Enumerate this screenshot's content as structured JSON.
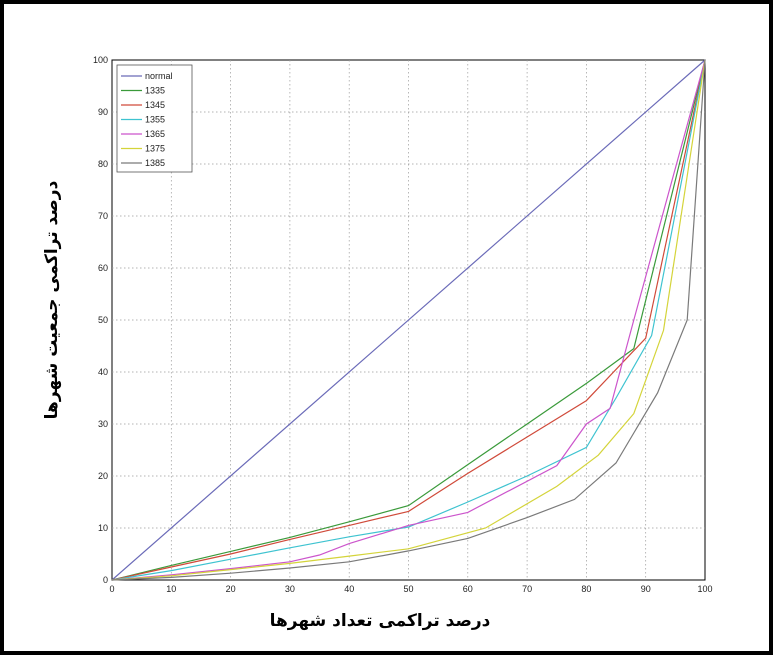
{
  "chart_data": {
    "type": "line",
    "title": "",
    "xlabel": "درصد تراکمی تعداد شهرها",
    "ylabel": "درصد تراکمی جمعیت شهرها",
    "xlim": [
      0,
      100
    ],
    "ylim": [
      0,
      100
    ],
    "xticks": [
      0,
      10,
      20,
      30,
      40,
      50,
      60,
      70,
      80,
      90,
      100
    ],
    "yticks": [
      0,
      10,
      20,
      30,
      40,
      50,
      60,
      70,
      80,
      90,
      100
    ],
    "grid": true,
    "legend_position": "top-left",
    "series": [
      {
        "name": "normal",
        "color": "#6a6ab8",
        "x": [
          0,
          100
        ],
        "y": [
          0,
          100
        ]
      },
      {
        "name": "1335",
        "color": "#3a9a3a",
        "x": [
          0,
          10,
          20,
          30,
          40,
          50,
          60,
          70,
          80,
          88,
          100
        ],
        "y": [
          0,
          2.8,
          5.5,
          8.2,
          11.2,
          14.3,
          22.2,
          30,
          37.8,
          44.5,
          100
        ]
      },
      {
        "name": "1345",
        "color": "#d04a3a",
        "x": [
          0,
          10,
          20,
          30,
          40,
          50,
          60,
          70,
          80,
          90,
          100
        ],
        "y": [
          0,
          2.5,
          5,
          7.8,
          10.5,
          13.2,
          20.5,
          27.5,
          34.5,
          46.5,
          100
        ]
      },
      {
        "name": "1355",
        "color": "#3ec3d0",
        "x": [
          0,
          10,
          20,
          30,
          40,
          50,
          60,
          70,
          80,
          85,
          91,
          100
        ],
        "y": [
          0,
          1.8,
          4,
          6.2,
          8.3,
          10.2,
          15,
          20,
          25.5,
          35,
          47,
          100
        ]
      },
      {
        "name": "1365",
        "color": "#cc55cc",
        "x": [
          0,
          10,
          20,
          30,
          35,
          40,
          50,
          60,
          75,
          80,
          84,
          88,
          100
        ],
        "y": [
          0,
          1,
          2.2,
          3.5,
          4.8,
          7,
          10.5,
          13,
          22,
          30,
          33,
          50,
          100
        ]
      },
      {
        "name": "1375",
        "color": "#d4d43a",
        "x": [
          0,
          10,
          20,
          30,
          40,
          50,
          63,
          75,
          82,
          88,
          93,
          100
        ],
        "y": [
          0,
          0.8,
          2,
          3.2,
          4.6,
          6,
          10,
          18,
          24,
          32,
          48,
          100
        ]
      },
      {
        "name": "1385",
        "color": "#7a7a7a",
        "x": [
          0,
          10,
          20,
          30,
          40,
          50,
          60,
          70,
          78,
          85,
          92,
          97,
          100
        ],
        "y": [
          0,
          0.5,
          1.3,
          2.3,
          3.5,
          5.6,
          8,
          12,
          15.5,
          22.5,
          36,
          50,
          100
        ]
      }
    ]
  }
}
